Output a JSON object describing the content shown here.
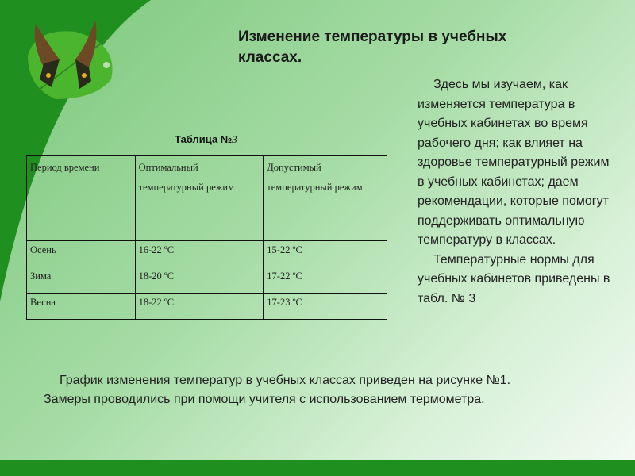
{
  "slide": {
    "title": "Изменение температуры в учебных классах.",
    "table_caption": "Таблица №",
    "table_caption_number": "3",
    "table": {
      "headers": [
        "Период времени",
        "Оптимальный температурный режим",
        "Допустимый температурный режим"
      ],
      "rows": [
        [
          "Осень",
          "16-22 ºC",
          "15-22 ºC"
        ],
        [
          "Зима",
          "18-20 ºC",
          "17-22 ºC"
        ],
        [
          "Весна",
          "18-22 ºC",
          "17-23 ºC"
        ]
      ]
    },
    "right_paragraphs": [
      "Здесь мы изучаем,  как изменяется температура в учебных кабинетах во время рабочего дня; как влияет на здоровье температурный режим в учебных кабинетах; даем рекомендации, которые помогут поддерживать оптимальную температуру  в классах.",
      "Температурные нормы для учебных кабинетов приведены в табл. № 3"
    ],
    "bottom_paragraph": "График изменения температур в учебных классах приведен на рисунке №1. Замеры проводились при помощи учителя с использованием термометра."
  },
  "colors": {
    "dark_green": "#1f8f1f",
    "light_green": "#a6dca6"
  },
  "icons": {
    "logo": "butterfly-on-leaf"
  }
}
